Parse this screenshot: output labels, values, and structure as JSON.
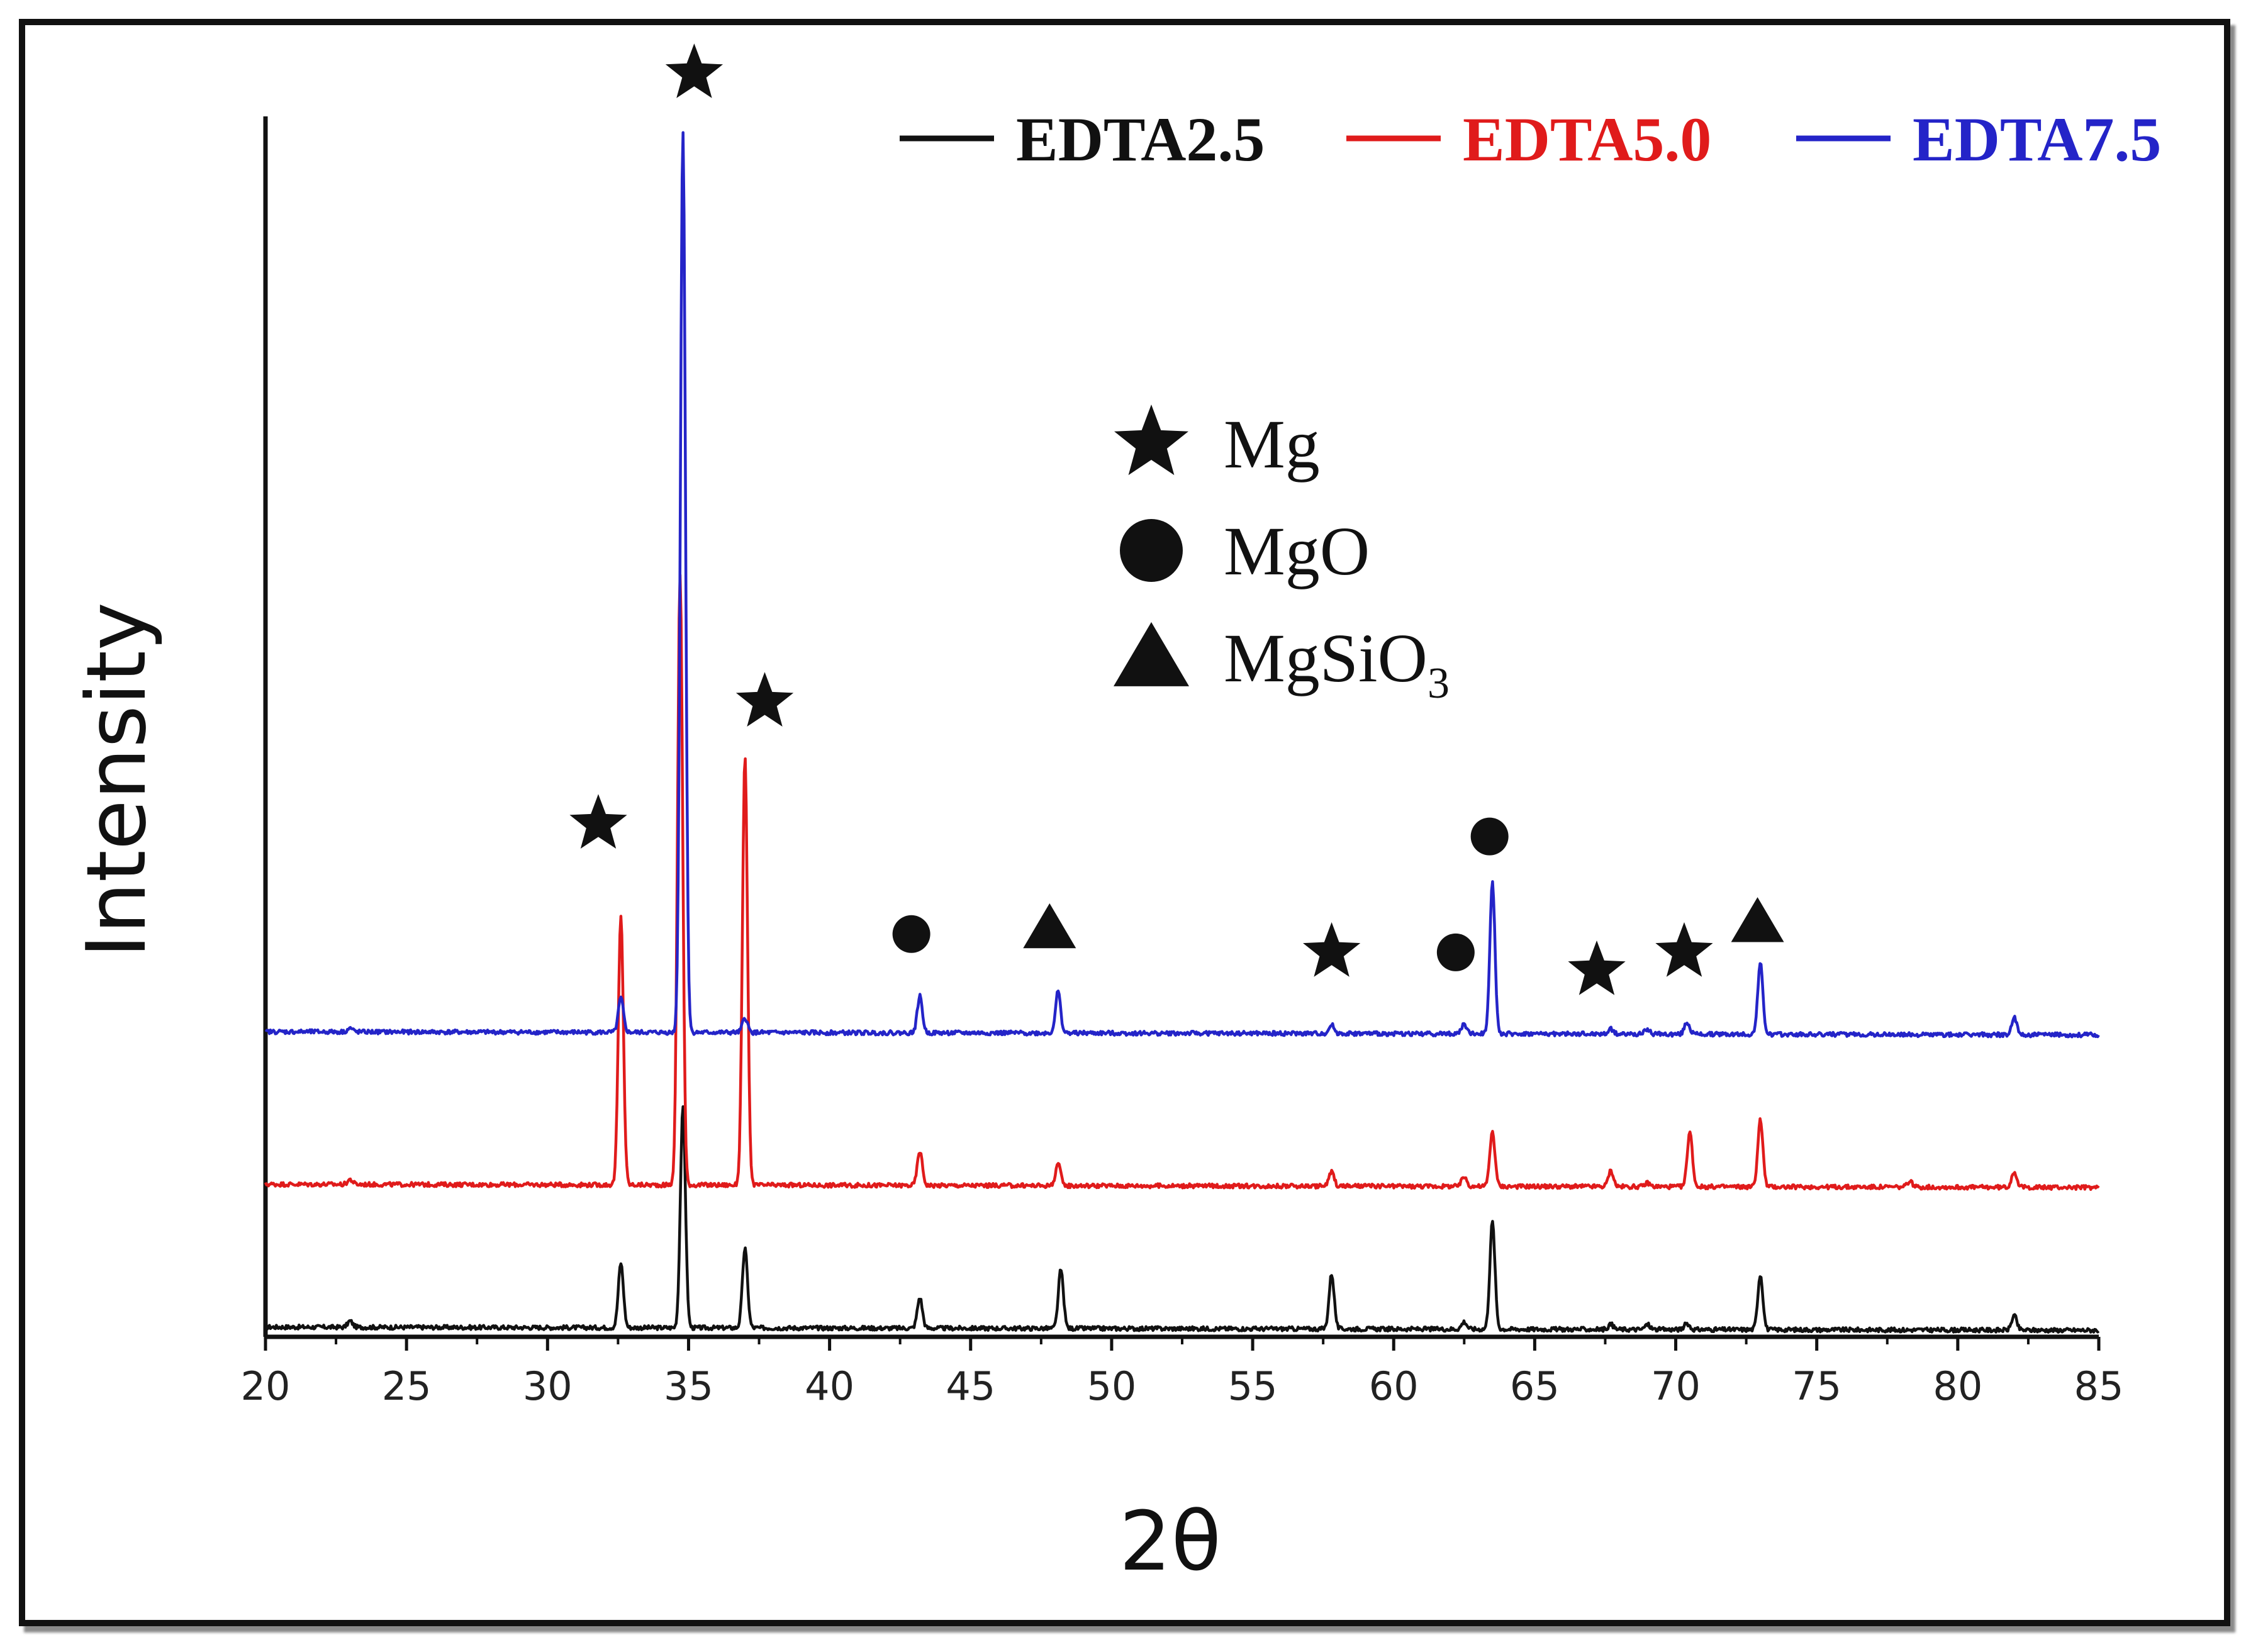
{
  "chart_data": {
    "type": "line",
    "title": "",
    "xlabel": "2θ",
    "ylabel": "Intensity",
    "xlim": [
      20,
      85
    ],
    "ylim": [
      0,
      100
    ],
    "xticks": [
      20,
      25,
      30,
      35,
      40,
      45,
      50,
      55,
      60,
      65,
      70,
      75,
      80,
      85
    ],
    "legend": {
      "placement": "top-right"
    },
    "series": [
      {
        "name": "EDTA2.5",
        "color": "#111111",
        "baseline": 0.8,
        "peaks": [
          [
            23.0,
            0.5
          ],
          [
            32.6,
            5.3
          ],
          [
            34.8,
            18.0
          ],
          [
            37.0,
            6.5
          ],
          [
            43.2,
            2.5
          ],
          [
            48.2,
            4.8
          ],
          [
            57.8,
            4.5
          ],
          [
            62.5,
            0.6
          ],
          [
            63.5,
            8.8
          ],
          [
            67.7,
            0.4
          ],
          [
            69.0,
            0.4
          ],
          [
            70.4,
            0.5
          ],
          [
            73.0,
            4.5
          ],
          [
            82.0,
            1.2
          ]
        ]
      },
      {
        "name": "EDTA5.0",
        "color": "#e01b1b",
        "baseline": 12.5,
        "peaks": [
          [
            23.0,
            0.4
          ],
          [
            32.6,
            22.0
          ],
          [
            34.7,
            50.0
          ],
          [
            37.0,
            35.0
          ],
          [
            43.2,
            2.8
          ],
          [
            48.1,
            1.8
          ],
          [
            57.8,
            1.2
          ],
          [
            62.5,
            0.8
          ],
          [
            63.5,
            4.5
          ],
          [
            67.7,
            1.3
          ],
          [
            69.0,
            0.3
          ],
          [
            70.5,
            4.5
          ],
          [
            73.0,
            5.5
          ],
          [
            78.3,
            0.5
          ],
          [
            82.0,
            1.3
          ]
        ]
      },
      {
        "name": "EDTA7.5",
        "color": "#2424c8",
        "baseline": 25.0,
        "peaks": [
          [
            23.0,
            0.3
          ],
          [
            32.6,
            2.8
          ],
          [
            34.8,
            74.0
          ],
          [
            37.0,
            1.2
          ],
          [
            43.2,
            3.0
          ],
          [
            48.1,
            3.4
          ],
          [
            57.8,
            0.7
          ],
          [
            62.5,
            0.8
          ],
          [
            63.5,
            12.5
          ],
          [
            67.7,
            0.4
          ],
          [
            69.0,
            0.4
          ],
          [
            70.4,
            1.0
          ],
          [
            73.0,
            5.8
          ],
          [
            82.0,
            1.4
          ]
        ]
      }
    ],
    "phase_legend": [
      {
        "symbol": "star",
        "label": "Mg"
      },
      {
        "symbol": "circle",
        "label": "MgO"
      },
      {
        "symbol": "triangle",
        "label": "MgSiO",
        "subscript": "3"
      }
    ],
    "markers": [
      {
        "symbol": "star",
        "x": 31.8,
        "y": 42.0
      },
      {
        "symbol": "star",
        "x": 35.2,
        "y": 103.5
      },
      {
        "symbol": "star",
        "x": 37.7,
        "y": 52.0
      },
      {
        "symbol": "circle",
        "x": 42.9,
        "y": 33.0
      },
      {
        "symbol": "triangle",
        "x": 47.8,
        "y": 33.5
      },
      {
        "symbol": "star",
        "x": 57.8,
        "y": 31.5
      },
      {
        "symbol": "circle",
        "x": 62.2,
        "y": 31.5
      },
      {
        "symbol": "circle",
        "x": 63.4,
        "y": 41.0
      },
      {
        "symbol": "star",
        "x": 67.2,
        "y": 30.0
      },
      {
        "symbol": "star",
        "x": 70.3,
        "y": 31.5
      },
      {
        "symbol": "triangle",
        "x": 72.9,
        "y": 34.0
      }
    ]
  }
}
